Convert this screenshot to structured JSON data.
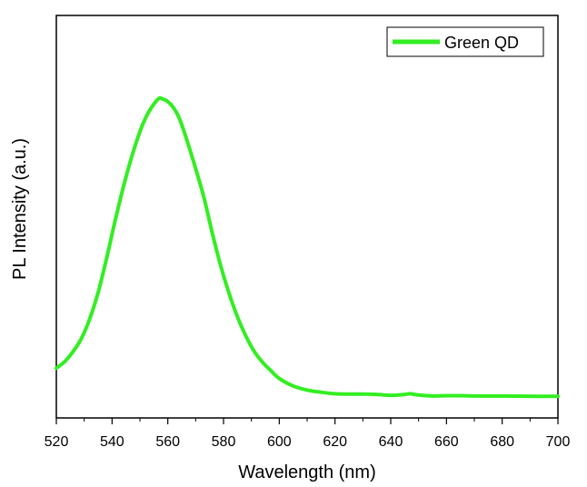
{
  "chart_data": {
    "type": "line",
    "title": "",
    "xlabel": "Wavelength (nm)",
    "ylabel": "PL Intensity (a.u.)",
    "xlim": [
      520,
      700
    ],
    "ylim": [
      0,
      1
    ],
    "x_ticks": [
      "520",
      "540",
      "560",
      "580",
      "600",
      "620",
      "640",
      "660",
      "680",
      "700"
    ],
    "y_ticks_shown": false,
    "grid": false,
    "legend": {
      "position": "top-right",
      "entries": [
        "Green QD"
      ]
    },
    "series": [
      {
        "name": "Green QD",
        "color": "#33ee22",
        "x": [
          520,
          523,
          526,
          529,
          532,
          535,
          538,
          541,
          544,
          547,
          550,
          552,
          554,
          556,
          557,
          558,
          560,
          562,
          564,
          566,
          568,
          570,
          573,
          576,
          579,
          582,
          585,
          588,
          591,
          594,
          597,
          600,
          605,
          610,
          615,
          620,
          625,
          630,
          635,
          640,
          645,
          647,
          650,
          655,
          660,
          665,
          670,
          680,
          690,
          700
        ],
        "values": [
          0.136,
          0.157,
          0.189,
          0.231,
          0.294,
          0.378,
          0.486,
          0.604,
          0.714,
          0.811,
          0.893,
          0.936,
          0.968,
          0.992,
          1.0,
          0.998,
          0.989,
          0.97,
          0.938,
          0.889,
          0.833,
          0.774,
          0.681,
          0.567,
          0.463,
          0.375,
          0.3,
          0.239,
          0.19,
          0.155,
          0.128,
          0.103,
          0.079,
          0.066,
          0.059,
          0.054,
          0.053,
          0.053,
          0.052,
          0.049,
          0.052,
          0.054,
          0.05,
          0.047,
          0.048,
          0.048,
          0.047,
          0.047,
          0.046,
          0.046
        ]
      }
    ]
  }
}
